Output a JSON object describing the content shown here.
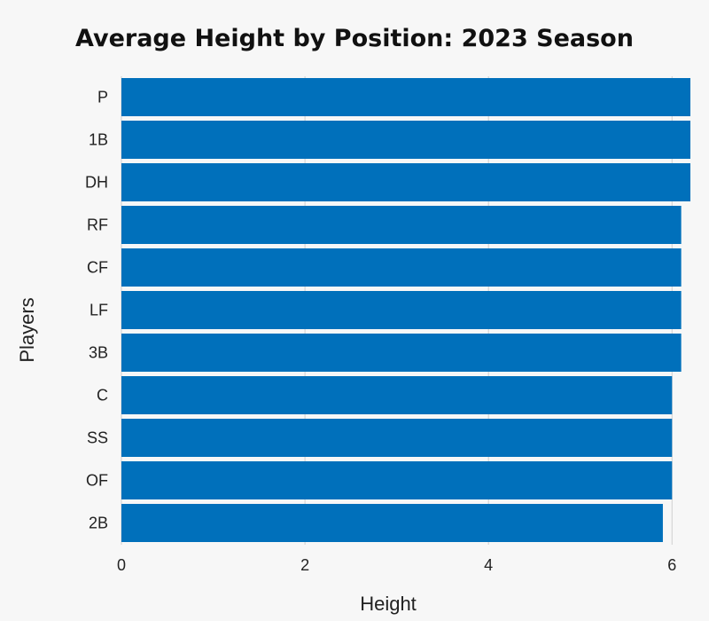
{
  "chart_data": {
    "type": "bar",
    "orientation": "horizontal",
    "title": "Average Height by Position: 2023 Season",
    "xlabel": "Height",
    "ylabel": "Players",
    "categories": [
      "P",
      "1B",
      "DH",
      "RF",
      "CF",
      "LF",
      "3B",
      "C",
      "SS",
      "OF",
      "2B"
    ],
    "values": [
      6.2,
      6.2,
      6.2,
      6.1,
      6.1,
      6.1,
      6.1,
      6.0,
      6.0,
      6.0,
      5.9
    ],
    "xlim": [
      0,
      6.2
    ],
    "xticks": [
      "0",
      "2",
      "4",
      "6"
    ],
    "xtick_values": [
      0,
      2,
      4,
      6
    ],
    "grid": "vertical",
    "bar_color": "#0070bb",
    "grid_color": "#cfcfcf"
  }
}
